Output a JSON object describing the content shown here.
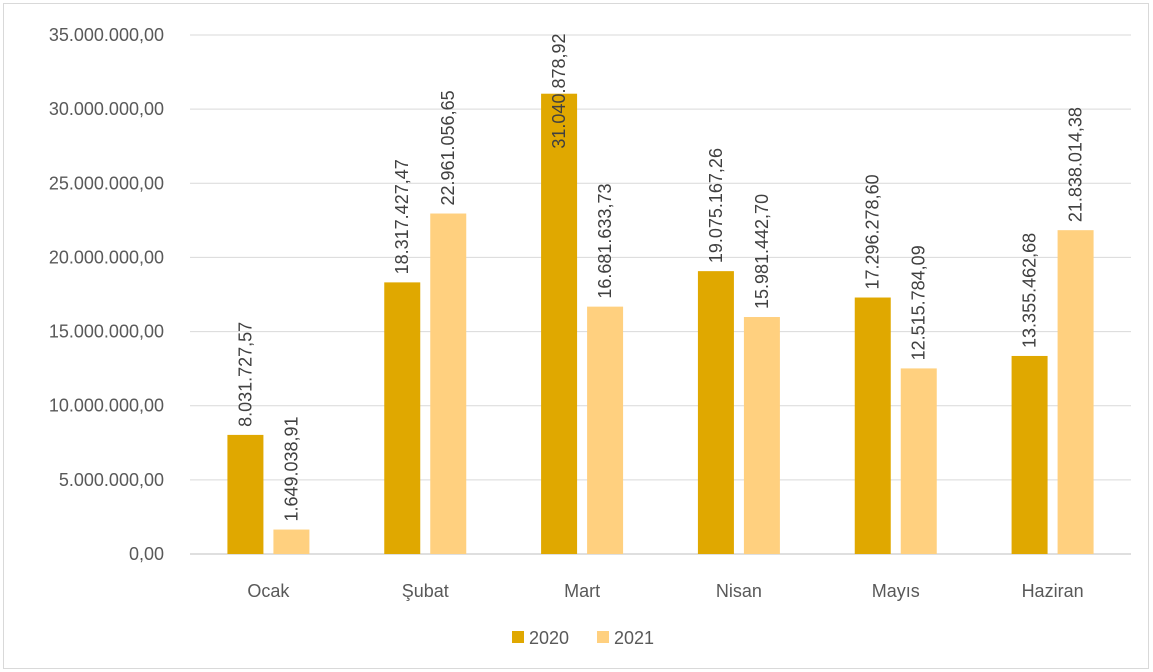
{
  "chart_data": {
    "type": "bar",
    "categories": [
      "Ocak",
      "Şubat",
      "Mart",
      "Nisan",
      "Mayıs",
      "Haziran"
    ],
    "series": [
      {
        "name": "2020",
        "color": "#E0A800",
        "values": [
          8031727.57,
          18317427.47,
          31040878.92,
          19075167.26,
          17296278.6,
          13355462.68
        ],
        "labels": [
          "8.031.727,57",
          "18.317.427,47",
          "31.040.878,92",
          "19.075.167,26",
          "17.296.278,60",
          "13.355.462,68"
        ]
      },
      {
        "name": "2021",
        "color": "#FFD07F",
        "values": [
          1649038.91,
          22961056.65,
          16681633.73,
          15981442.7,
          12515784.09,
          21838014.38
        ],
        "labels": [
          "1.649.038,91",
          "22.961.056,65",
          "16.681.633,73",
          "15.981.442,70",
          "12.515.784,09",
          "21.838.014,38"
        ]
      }
    ],
    "yticks": [
      "0,00",
      "5.000.000,00",
      "10.000.000,00",
      "15.000.000,00",
      "20.000.000,00",
      "25.000.000,00",
      "30.000.000,00",
      "35.000.000,00"
    ],
    "ylim": [
      0,
      35000000
    ],
    "grid": true,
    "legend_position": "bottom"
  }
}
